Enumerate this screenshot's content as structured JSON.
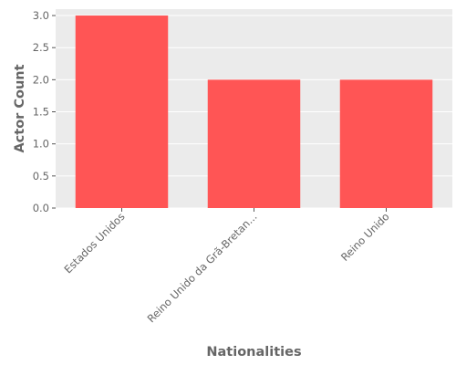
{
  "chart_data": {
    "type": "bar",
    "categories": [
      "Estados Unidos",
      "Reino Unido da Grã-Bretan...",
      "Reino Unido"
    ],
    "values": [
      3,
      2,
      2
    ],
    "xlabel": "Nationalities",
    "ylabel": "Actor Count",
    "ylim": [
      0,
      3.1
    ],
    "yticks": [
      "0.0",
      "0.5",
      "1.0",
      "1.5",
      "2.0",
      "2.5",
      "3.0"
    ],
    "grid": true,
    "bar_color": "#ff5555",
    "plot_background": "#ebebeb",
    "grid_color": "#ffffff"
  }
}
